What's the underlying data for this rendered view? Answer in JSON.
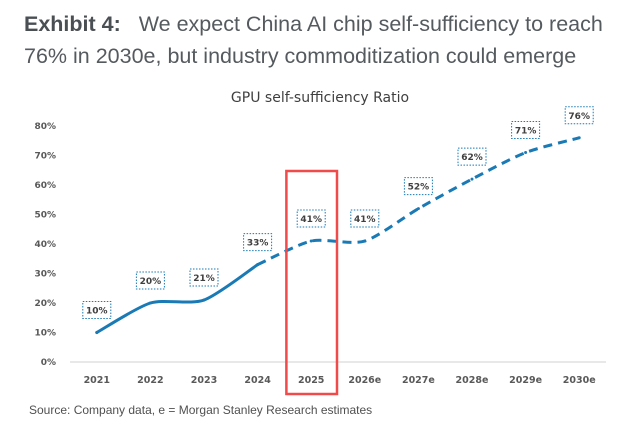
{
  "exhibit": {
    "label": "Exhibit 4:",
    "title": "We expect China AI chip self-sufficiency to reach 76% in 2030e, but industry commoditization could emerge"
  },
  "chart_data": {
    "type": "line",
    "title": "GPU self-sufficiency Ratio",
    "xlabel": "",
    "ylabel": "",
    "categories": [
      "2021",
      "2022",
      "2023",
      "2024",
      "2025",
      "2026e",
      "2027e",
      "2028e",
      "2029e",
      "2030e"
    ],
    "series": [
      {
        "name": "GPU self-sufficiency Ratio",
        "values": [
          10,
          20,
          21,
          33,
          41,
          41,
          52,
          62,
          71,
          76
        ],
        "data_labels": [
          "10%",
          "20%",
          "21%",
          "33%",
          "41%",
          "41%",
          "52%",
          "62%",
          "71%",
          "76%"
        ],
        "actual_through": "2024",
        "estimate_style": "dashed",
        "color": "#1a7ab5"
      }
    ],
    "y_ticks": [
      "0%",
      "10%",
      "20%",
      "30%",
      "40%",
      "50%",
      "60%",
      "70%",
      "80%"
    ],
    "ylim": [
      0,
      80
    ],
    "grid": false,
    "legend": "none",
    "highlight": {
      "category": "2025",
      "color": "#f04a4a"
    }
  },
  "source": "Source: Company data, e = Morgan Stanley Research estimates"
}
